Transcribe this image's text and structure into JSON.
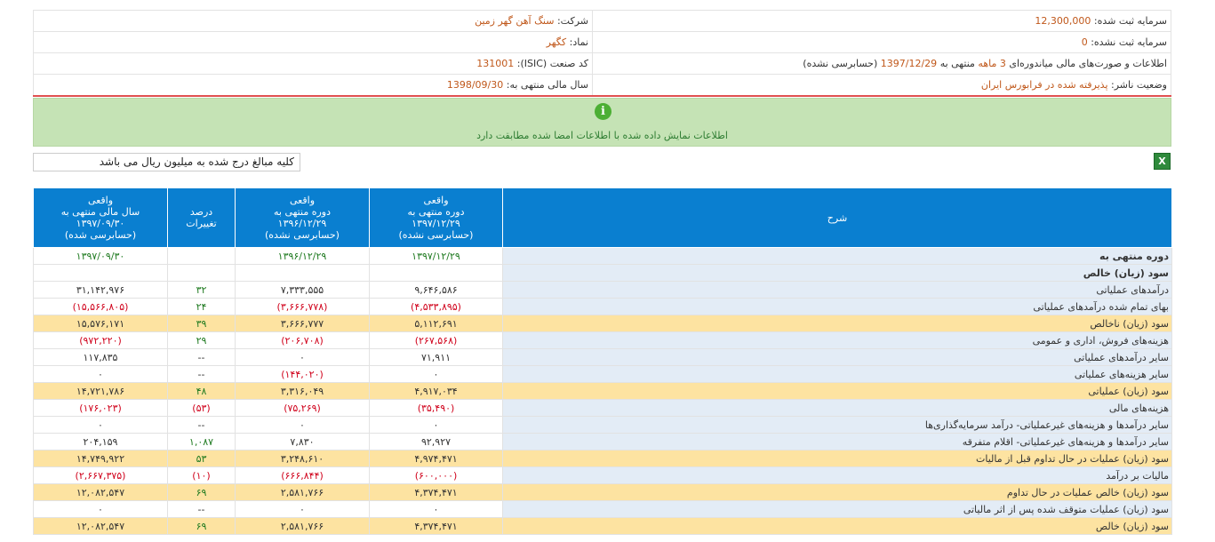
{
  "info": {
    "company_label": "شرکت:",
    "company_value": "سنگ آهن گهر زمین",
    "reg_capital_label": "سرمایه ثبت شده:",
    "reg_capital_value": "12,300,000",
    "symbol_label": "نماد:",
    "symbol_value": "کگهر",
    "unreg_capital_label": "سرمایه ثبت نشده:",
    "unreg_capital_value": "0",
    "isic_label": "کد صنعت (ISIC):",
    "isic_value": "131001",
    "report_text_a": "اطلاعات و صورت‌های مالی میاندوره‌ای",
    "report_period": "3 ماهه",
    "report_text_b": "منتهی به",
    "report_date": "1397/12/29",
    "report_text_c": "(حسابرسی نشده)",
    "fiscal_label": "سال مالی منتهی به:",
    "fiscal_value": "1398/09/30",
    "status_label": "وضعیت ناشر:",
    "status_value": "پذیرفته شده در فرابورس ایران"
  },
  "notice": {
    "icon": "info-icon",
    "message": "اطلاعات نمایش داده شده با اطلاعات امضا شده مطابقت دارد"
  },
  "toolbar": {
    "excel_icon": "excel-icon",
    "excel_glyph": "X",
    "unit_note": "کلیه مبالغ درج شده به میلیون ریال می باشد"
  },
  "table": {
    "headers": {
      "desc": "شرح",
      "c1": [
        "واقعی",
        "دوره منتهی به",
        "۱۳۹۷/۱۲/۲۹",
        "(حسابرسی نشده)"
      ],
      "c2": [
        "واقعی",
        "دوره منتهی به",
        "۱۳۹۶/۱۲/۲۹",
        "(حسابرسی نشده)"
      ],
      "c3": [
        "درصد",
        "تغییرات"
      ],
      "c4": [
        "واقعی",
        "سال مالی منتهی به",
        "۱۳۹۷/۰۹/۳۰",
        "(حسابرسی شده)"
      ]
    },
    "rows": [
      {
        "desc": "دوره منتهی به",
        "v1": "۱۳۹۷/۱۲/۲۹",
        "v2": "۱۳۹۶/۱۲/۲۹",
        "v3": "",
        "v4": "۱۳۹۷/۰۹/۳۰",
        "type": "date"
      },
      {
        "desc": "سود (زیان) خالص",
        "v1": "",
        "v2": "",
        "v3": "",
        "v4": "",
        "type": "section"
      },
      {
        "desc": "درآمدهای عملیاتی",
        "v1": "۹,۶۴۶,۵۸۶",
        "v2": "۷,۳۳۳,۵۵۵",
        "v3": "۳۲",
        "v4": "۳۱,۱۴۲,۹۷۶",
        "type": "normal"
      },
      {
        "desc": "بهای تمام شده درآمدهای عملیاتی",
        "v1": "(۴,۵۳۳,۸۹۵)",
        "v2": "(۳,۶۶۶,۷۷۸)",
        "v3": "۲۴",
        "v4": "(۱۵,۵۶۶,۸۰۵)",
        "type": "normal"
      },
      {
        "desc": "سود (زیان) ناخالص",
        "v1": "۵,۱۱۲,۶۹۱",
        "v2": "۳,۶۶۶,۷۷۷",
        "v3": "۳۹",
        "v4": "۱۵,۵۷۶,۱۷۱",
        "type": "hl"
      },
      {
        "desc": "هزینه‌های فروش، اداری و عمومی",
        "v1": "(۲۶۷,۵۶۸)",
        "v2": "(۲۰۶,۷۰۸)",
        "v3": "۲۹",
        "v4": "(۹۷۲,۲۲۰)",
        "type": "normal"
      },
      {
        "desc": "سایر درآمدهای عملیاتی",
        "v1": "۷۱,۹۱۱",
        "v2": "۰",
        "v3": "--",
        "v4": "۱۱۷,۸۳۵",
        "type": "normal"
      },
      {
        "desc": "سایر هزینه‌های عملیاتی",
        "v1": "۰",
        "v2": "(۱۴۴,۰۲۰)",
        "v3": "--",
        "v4": "۰",
        "type": "normal"
      },
      {
        "desc": "سود (زیان) عملیاتی",
        "v1": "۴,۹۱۷,۰۳۴",
        "v2": "۳,۳۱۶,۰۴۹",
        "v3": "۴۸",
        "v4": "۱۴,۷۲۱,۷۸۶",
        "type": "hl"
      },
      {
        "desc": "هزینه‌های مالی",
        "v1": "(۳۵,۴۹۰)",
        "v2": "(۷۵,۲۶۹)",
        "v3": "(۵۳)",
        "v4": "(۱۷۶,۰۲۳)",
        "type": "normal"
      },
      {
        "desc": "سایر درآمدها و هزینه‌های غیرعملیاتی- درآمد سرمایه‌گذاری‌ها",
        "v1": "۰",
        "v2": "۰",
        "v3": "--",
        "v4": "۰",
        "type": "normal"
      },
      {
        "desc": "سایر درآمدها و هزینه‌های غیرعملیاتی- اقلام متفرقه",
        "v1": "۹۲,۹۲۷",
        "v2": "۷,۸۳۰",
        "v3": "۱,۰۸۷",
        "v4": "۲۰۴,۱۵۹",
        "type": "normal"
      },
      {
        "desc": "سود (زیان) عملیات در حال تداوم قبل از مالیات",
        "v1": "۴,۹۷۴,۴۷۱",
        "v2": "۳,۲۴۸,۶۱۰",
        "v3": "۵۳",
        "v4": "۱۴,۷۴۹,۹۲۲",
        "type": "hl"
      },
      {
        "desc": "مالیات بر درآمد",
        "v1": "(۶۰۰,۰۰۰)",
        "v2": "(۶۶۶,۸۴۴)",
        "v3": "(۱۰)",
        "v4": "(۲,۶۶۷,۳۷۵)",
        "type": "normal"
      },
      {
        "desc": "سود (زیان) خالص عملیات در حال تداوم",
        "v1": "۴,۳۷۴,۴۷۱",
        "v2": "۲,۵۸۱,۷۶۶",
        "v3": "۶۹",
        "v4": "۱۲,۰۸۲,۵۴۷",
        "type": "hl"
      },
      {
        "desc": "سود (زیان) عملیات متوقف شده پس از اثر مالیاتی",
        "v1": "۰",
        "v2": "۰",
        "v3": "--",
        "v4": "۰",
        "type": "normal"
      },
      {
        "desc": "سود (زیان) خالص",
        "v1": "۴,۳۷۴,۴۷۱",
        "v2": "۲,۵۸۱,۷۶۶",
        "v3": "۶۹",
        "v4": "۱۲,۰۸۲,۵۴۷",
        "type": "hl"
      }
    ]
  }
}
